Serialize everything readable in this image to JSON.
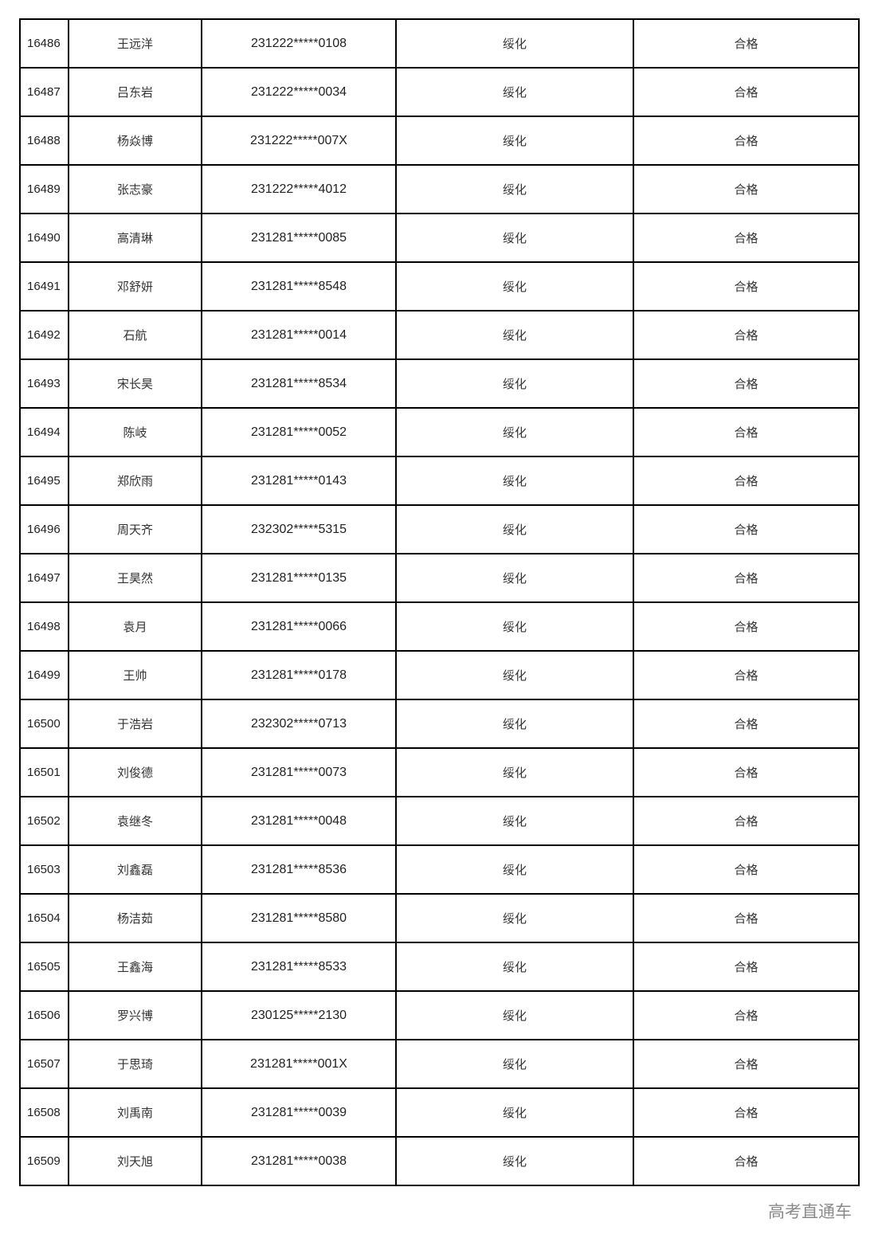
{
  "rows": [
    {
      "no": "16486",
      "name": "王远洋",
      "id": "231222*****0108",
      "major": "绥化",
      "result": "合格"
    },
    {
      "no": "16487",
      "name": "吕东岩",
      "id": "231222*****0034",
      "major": "绥化",
      "result": "合格"
    },
    {
      "no": "16488",
      "name": "杨焱博",
      "id": "231222*****007X",
      "major": "绥化",
      "result": "合格"
    },
    {
      "no": "16489",
      "name": "张志豪",
      "id": "231222*****4012",
      "major": "绥化",
      "result": "合格"
    },
    {
      "no": "16490",
      "name": "高清琳",
      "id": "231281*****0085",
      "major": "绥化",
      "result": "合格"
    },
    {
      "no": "16491",
      "name": "邓舒妍",
      "id": "231281*****8548",
      "major": "绥化",
      "result": "合格"
    },
    {
      "no": "16492",
      "name": "石航",
      "id": "231281*****0014",
      "major": "绥化",
      "result": "合格"
    },
    {
      "no": "16493",
      "name": "宋长昊",
      "id": "231281*****8534",
      "major": "绥化",
      "result": "合格"
    },
    {
      "no": "16494",
      "name": "陈岐",
      "id": "231281*****0052",
      "major": "绥化",
      "result": "合格"
    },
    {
      "no": "16495",
      "name": "郑欣雨",
      "id": "231281*****0143",
      "major": "绥化",
      "result": "合格"
    },
    {
      "no": "16496",
      "name": "周天齐",
      "id": "232302*****5315",
      "major": "绥化",
      "result": "合格"
    },
    {
      "no": "16497",
      "name": "王昊然",
      "id": "231281*****0135",
      "major": "绥化",
      "result": "合格"
    },
    {
      "no": "16498",
      "name": "袁月",
      "id": "231281*****0066",
      "major": "绥化",
      "result": "合格"
    },
    {
      "no": "16499",
      "name": "王帅",
      "id": "231281*****0178",
      "major": "绥化",
      "result": "合格"
    },
    {
      "no": "16500",
      "name": "于浩岩",
      "id": "232302*****0713",
      "major": "绥化",
      "result": "合格"
    },
    {
      "no": "16501",
      "name": "刘俊德",
      "id": "231281*****0073",
      "major": "绥化",
      "result": "合格"
    },
    {
      "no": "16502",
      "name": "袁继冬",
      "id": "231281*****0048",
      "major": "绥化",
      "result": "合格"
    },
    {
      "no": "16503",
      "name": "刘鑫磊",
      "id": "231281*****8536",
      "major": "绥化",
      "result": "合格"
    },
    {
      "no": "16504",
      "name": "杨洁茹",
      "id": "231281*****8580",
      "major": "绥化",
      "result": "合格"
    },
    {
      "no": "16505",
      "name": "王鑫海",
      "id": "231281*****8533",
      "major": "绥化",
      "result": "合格"
    },
    {
      "no": "16506",
      "name": "罗兴博",
      "id": "230125*****2130",
      "major": "绥化",
      "result": "合格"
    },
    {
      "no": "16507",
      "name": "于思琦",
      "id": "231281*****001X",
      "major": "绥化",
      "result": "合格"
    },
    {
      "no": "16508",
      "name": "刘禹南",
      "id": "231281*****0039",
      "major": "绥化",
      "result": "合格"
    },
    {
      "no": "16509",
      "name": "刘天旭",
      "id": "231281*****0038",
      "major": "绥化",
      "result": "合格"
    }
  ],
  "watermark": "高考直通车"
}
